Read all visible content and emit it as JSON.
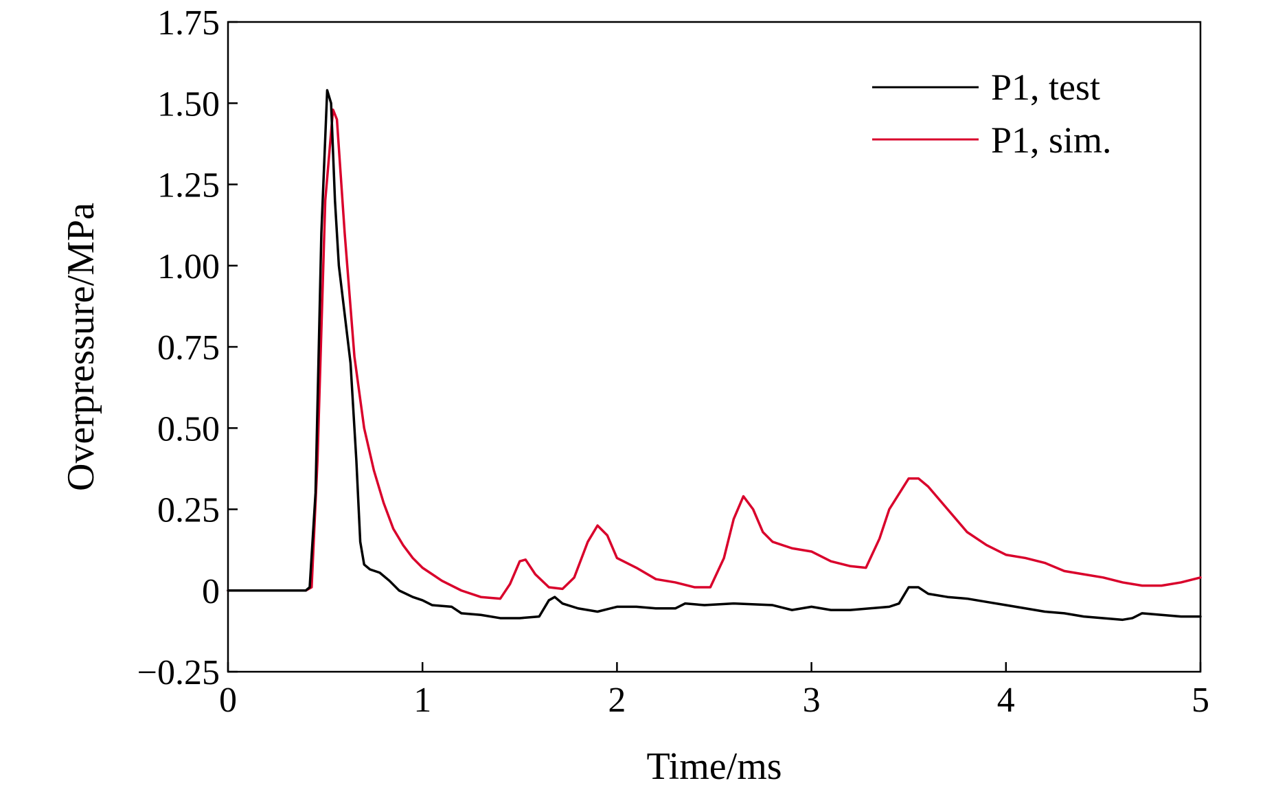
{
  "chart_data": {
    "type": "line",
    "title": "",
    "xlabel": "Time/ms",
    "ylabel": "Overpressure/MPa",
    "xlim": [
      0,
      5
    ],
    "ylim": [
      -0.25,
      1.75
    ],
    "x_ticks": [
      0,
      1,
      2,
      3,
      4,
      5
    ],
    "x_tick_labels": [
      "0",
      "1",
      "2",
      "3",
      "4",
      "5"
    ],
    "y_ticks": [
      -0.25,
      0,
      0.25,
      0.5,
      0.75,
      1.0,
      1.25,
      1.5,
      1.75
    ],
    "y_tick_labels": [
      "−0.25",
      "0",
      "0.25",
      "0.50",
      "0.75",
      "1.00",
      "1.25",
      "1.50",
      "1.75"
    ],
    "grid": false,
    "legend_position": "top-right",
    "series": [
      {
        "name": "P1, test",
        "color": "#000000",
        "points": [
          [
            0,
            0
          ],
          [
            0.2,
            0
          ],
          [
            0.4,
            0
          ],
          [
            0.42,
            0.01
          ],
          [
            0.45,
            0.3
          ],
          [
            0.48,
            1.1
          ],
          [
            0.51,
            1.54
          ],
          [
            0.53,
            1.5
          ],
          [
            0.55,
            1.2
          ],
          [
            0.57,
            1.0
          ],
          [
            0.6,
            0.85
          ],
          [
            0.63,
            0.7
          ],
          [
            0.66,
            0.4
          ],
          [
            0.68,
            0.15
          ],
          [
            0.7,
            0.08
          ],
          [
            0.73,
            0.065
          ],
          [
            0.78,
            0.055
          ],
          [
            0.83,
            0.03
          ],
          [
            0.88,
            0.0
          ],
          [
            0.95,
            -0.02
          ],
          [
            1.0,
            -0.03
          ],
          [
            1.05,
            -0.045
          ],
          [
            1.15,
            -0.05
          ],
          [
            1.2,
            -0.07
          ],
          [
            1.3,
            -0.075
          ],
          [
            1.4,
            -0.085
          ],
          [
            1.5,
            -0.085
          ],
          [
            1.6,
            -0.08
          ],
          [
            1.65,
            -0.03
          ],
          [
            1.68,
            -0.02
          ],
          [
            1.72,
            -0.04
          ],
          [
            1.8,
            -0.055
          ],
          [
            1.9,
            -0.065
          ],
          [
            2.0,
            -0.05
          ],
          [
            2.1,
            -0.05
          ],
          [
            2.2,
            -0.055
          ],
          [
            2.3,
            -0.055
          ],
          [
            2.35,
            -0.04
          ],
          [
            2.45,
            -0.045
          ],
          [
            2.6,
            -0.04
          ],
          [
            2.8,
            -0.045
          ],
          [
            2.9,
            -0.06
          ],
          [
            3.0,
            -0.05
          ],
          [
            3.1,
            -0.06
          ],
          [
            3.2,
            -0.06
          ],
          [
            3.3,
            -0.055
          ],
          [
            3.4,
            -0.05
          ],
          [
            3.45,
            -0.04
          ],
          [
            3.5,
            0.01
          ],
          [
            3.55,
            0.01
          ],
          [
            3.6,
            -0.01
          ],
          [
            3.7,
            -0.02
          ],
          [
            3.8,
            -0.025
          ],
          [
            3.9,
            -0.035
          ],
          [
            4.0,
            -0.045
          ],
          [
            4.1,
            -0.055
          ],
          [
            4.2,
            -0.065
          ],
          [
            4.3,
            -0.07
          ],
          [
            4.4,
            -0.08
          ],
          [
            4.5,
            -0.085
          ],
          [
            4.6,
            -0.09
          ],
          [
            4.65,
            -0.085
          ],
          [
            4.7,
            -0.07
          ],
          [
            4.8,
            -0.075
          ],
          [
            4.9,
            -0.08
          ],
          [
            5.0,
            -0.08
          ]
        ]
      },
      {
        "name": "P1, sim.",
        "color": "#d9002b",
        "points": [
          [
            0,
            0
          ],
          [
            0.2,
            0
          ],
          [
            0.4,
            0
          ],
          [
            0.43,
            0.01
          ],
          [
            0.46,
            0.4
          ],
          [
            0.5,
            1.2
          ],
          [
            0.54,
            1.48
          ],
          [
            0.56,
            1.45
          ],
          [
            0.6,
            1.1
          ],
          [
            0.65,
            0.72
          ],
          [
            0.7,
            0.5
          ],
          [
            0.75,
            0.37
          ],
          [
            0.8,
            0.27
          ],
          [
            0.85,
            0.19
          ],
          [
            0.9,
            0.14
          ],
          [
            0.95,
            0.1
          ],
          [
            1.0,
            0.07
          ],
          [
            1.1,
            0.03
          ],
          [
            1.2,
            0.0
          ],
          [
            1.3,
            -0.02
          ],
          [
            1.4,
            -0.025
          ],
          [
            1.45,
            0.02
          ],
          [
            1.5,
            0.09
          ],
          [
            1.53,
            0.095
          ],
          [
            1.58,
            0.05
          ],
          [
            1.65,
            0.01
          ],
          [
            1.72,
            0.005
          ],
          [
            1.78,
            0.04
          ],
          [
            1.85,
            0.15
          ],
          [
            1.9,
            0.2
          ],
          [
            1.95,
            0.17
          ],
          [
            2.0,
            0.1
          ],
          [
            2.1,
            0.07
          ],
          [
            2.2,
            0.035
          ],
          [
            2.3,
            0.025
          ],
          [
            2.4,
            0.01
          ],
          [
            2.48,
            0.01
          ],
          [
            2.55,
            0.1
          ],
          [
            2.6,
            0.22
          ],
          [
            2.65,
            0.29
          ],
          [
            2.7,
            0.25
          ],
          [
            2.75,
            0.18
          ],
          [
            2.8,
            0.15
          ],
          [
            2.9,
            0.13
          ],
          [
            3.0,
            0.12
          ],
          [
            3.1,
            0.09
          ],
          [
            3.2,
            0.075
          ],
          [
            3.28,
            0.07
          ],
          [
            3.35,
            0.16
          ],
          [
            3.4,
            0.25
          ],
          [
            3.5,
            0.345
          ],
          [
            3.55,
            0.345
          ],
          [
            3.6,
            0.32
          ],
          [
            3.7,
            0.25
          ],
          [
            3.8,
            0.18
          ],
          [
            3.9,
            0.14
          ],
          [
            4.0,
            0.11
          ],
          [
            4.1,
            0.1
          ],
          [
            4.2,
            0.085
          ],
          [
            4.3,
            0.06
          ],
          [
            4.4,
            0.05
          ],
          [
            4.5,
            0.04
          ],
          [
            4.6,
            0.025
          ],
          [
            4.7,
            0.015
          ],
          [
            4.8,
            0.015
          ],
          [
            4.9,
            0.025
          ],
          [
            5.0,
            0.04
          ]
        ]
      }
    ]
  }
}
